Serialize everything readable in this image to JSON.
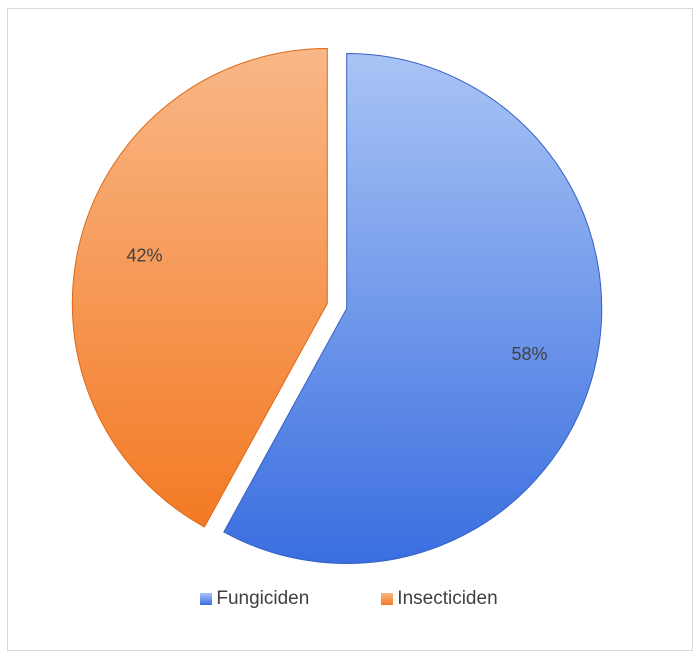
{
  "chart_data": {
    "type": "pie",
    "categories": [
      "Fungiciden",
      "Insecticiden"
    ],
    "values": [
      58,
      42
    ],
    "labels": [
      "58%",
      "42%"
    ],
    "colors": {
      "Fungiciden": {
        "light": "#a9c4f5",
        "dark": "#3a6ee0",
        "edge": "#3561c4"
      },
      "Insecticiden": {
        "light": "#f9b787",
        "dark": "#f37a24",
        "edge": "#de6a17"
      }
    },
    "exploded": true,
    "legend_position": "bottom",
    "title": ""
  },
  "legend": {
    "items": [
      {
        "label": "Fungiciden"
      },
      {
        "label": "Insecticiden"
      }
    ]
  }
}
